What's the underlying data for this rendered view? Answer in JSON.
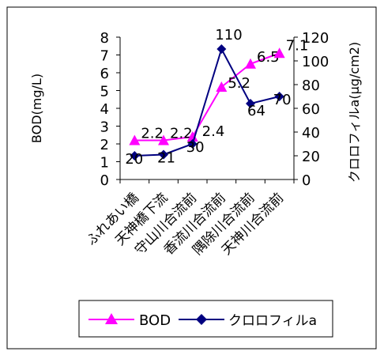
{
  "chart_data": {
    "type": "line",
    "ylabel_left": "BOD(mg/L)",
    "ylabel_right": "クロロフィルa(μg/cm2)",
    "categories": [
      "ふれあい橋",
      "天神橋下流",
      "守山川合流前",
      "香流川合流前",
      "隅除川合流前",
      "天神川合流前"
    ],
    "left_axis": {
      "min": 0,
      "max": 8,
      "ticks": [
        "0",
        "1",
        "2",
        "3",
        "4",
        "5",
        "6",
        "7",
        "8"
      ]
    },
    "right_axis": {
      "min": 0,
      "max": 120,
      "ticks": [
        "0",
        "20",
        "40",
        "60",
        "80",
        "100",
        "120"
      ]
    },
    "grid": false,
    "legend_position": "bottom",
    "series": [
      {
        "name": "BOD",
        "axis": "left",
        "color": "#ff00ff",
        "marker": "triangle",
        "values": [
          2.2,
          2.2,
          2.4,
          5.2,
          6.5,
          7.1
        ],
        "labels": [
          "2.2",
          "2.2",
          "2.4",
          "5.2",
          "6.5",
          "7.1"
        ]
      },
      {
        "name": "クロロフィルa",
        "axis": "right",
        "color": "#000080",
        "marker": "diamond",
        "values": [
          20,
          21,
          30,
          110,
          64,
          70
        ],
        "labels": [
          "20",
          "21",
          "30",
          "110",
          "64",
          "70"
        ]
      }
    ]
  }
}
